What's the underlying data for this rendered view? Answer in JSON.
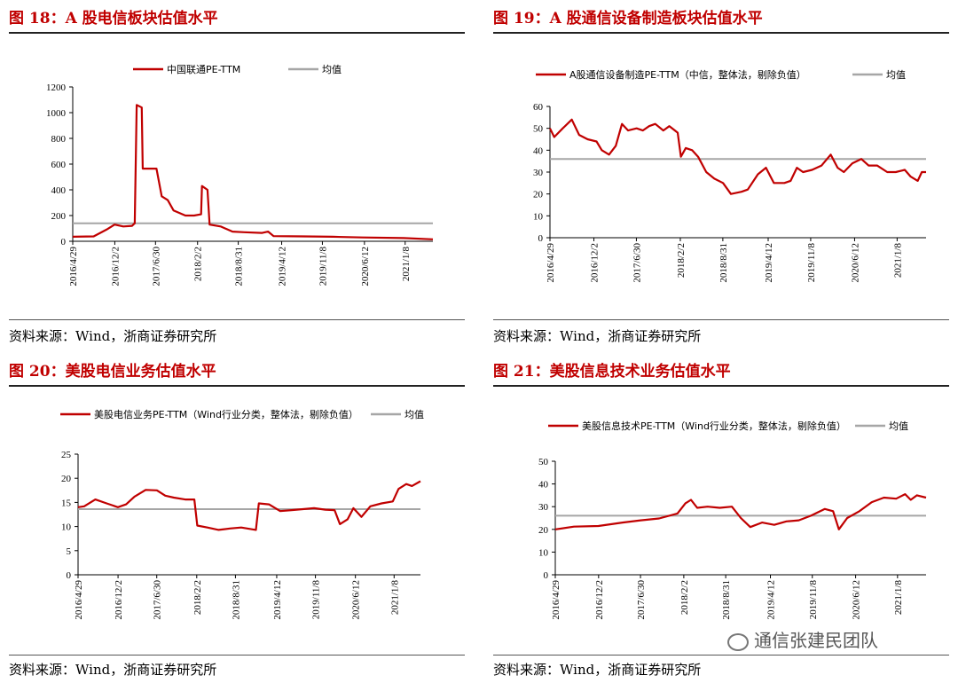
{
  "panels": [
    {
      "title": "图 18：A 股电信板块估值水平",
      "source": "资料来源：Wind，浙商证券研究所",
      "chart_data": {
        "type": "line",
        "series": [
          {
            "name": "中国联通PE-TTM",
            "color": "#c00000",
            "points": [
              [
                "2016-04-29",
                35
              ],
              [
                "2016-08-15",
                38
              ],
              [
                "2016-10-20",
                90
              ],
              [
                "2016-12-01",
                130
              ],
              [
                "2017-01-15",
                115
              ],
              [
                "2017-03-01",
                120
              ],
              [
                "2017-03-15",
                140
              ],
              [
                "2017-03-25",
                1060
              ],
              [
                "2017-04-20",
                1040
              ],
              [
                "2017-04-25",
                565
              ],
              [
                "2017-06-01",
                565
              ],
              [
                "2017-07-05",
                565
              ],
              [
                "2017-08-01",
                350
              ],
              [
                "2017-09-01",
                320
              ],
              [
                "2017-10-01",
                240
              ],
              [
                "2017-12-01",
                200
              ],
              [
                "2018-01-15",
                200
              ],
              [
                "2018-02-20",
                210
              ],
              [
                "2018-02-25",
                430
              ],
              [
                "2018-03-25",
                400
              ],
              [
                "2018-04-05",
                130
              ],
              [
                "2018-06-01",
                115
              ],
              [
                "2018-08-01",
                75
              ],
              [
                "2018-10-01",
                70
              ],
              [
                "2019-01-01",
                65
              ],
              [
                "2019-02-01",
                75
              ],
              [
                "2019-03-01",
                40
              ],
              [
                "2019-08-01",
                38
              ],
              [
                "2020-01-01",
                35
              ],
              [
                "2020-06-01",
                30
              ],
              [
                "2021-01-01",
                25
              ],
              [
                "2021-05-31",
                15
              ]
            ]
          },
          {
            "name": "均值",
            "color": "#a6a6a6",
            "points": [
              [
                "2016-04-29",
                140
              ],
              [
                "2021-05-31",
                140
              ]
            ]
          }
        ],
        "y_range": [
          0,
          1200
        ],
        "y_ticks": [
          "0",
          "200",
          "400",
          "600",
          "800",
          "1000",
          "1200"
        ],
        "x_ticks": [
          "2016/4/29",
          "2016/12/2",
          "2017/6/30",
          "2018/2/2",
          "2018/8/31",
          "2019/4/12",
          "2019/11/8",
          "2020/6/12",
          "2021/1/8"
        ],
        "x_range": [
          "2016-04-29",
          "2021-05-31"
        ],
        "legend": "top-center",
        "grid": false
      }
    },
    {
      "title": "图 19：A 股通信设备制造板块估值水平",
      "source": "资料来源：Wind，浙商证券研究所",
      "chart_data": {
        "type": "line",
        "series": [
          {
            "name": "A股通信设备制造PE-TTM（中信，整体法，剔除负值）",
            "color": "#c00000",
            "points": [
              [
                "2016-04-29",
                50
              ],
              [
                "2016-05-20",
                46
              ],
              [
                "2016-07-01",
                50
              ],
              [
                "2016-08-15",
                54
              ],
              [
                "2016-09-20",
                47
              ],
              [
                "2016-11-01",
                45
              ],
              [
                "2016-12-15",
                44
              ],
              [
                "2017-01-10",
                40
              ],
              [
                "2017-02-15",
                38
              ],
              [
                "2017-03-20",
                42
              ],
              [
                "2017-04-20",
                52
              ],
              [
                "2017-05-20",
                49
              ],
              [
                "2017-07-01",
                50
              ],
              [
                "2017-08-01",
                49
              ],
              [
                "2017-09-01",
                51
              ],
              [
                "2017-10-01",
                52
              ],
              [
                "2017-11-10",
                49
              ],
              [
                "2017-12-10",
                51
              ],
              [
                "2018-01-20",
                48
              ],
              [
                "2018-02-05",
                37
              ],
              [
                "2018-03-01",
                41
              ],
              [
                "2018-04-01",
                40
              ],
              [
                "2018-05-01",
                37
              ],
              [
                "2018-06-10",
                30
              ],
              [
                "2018-07-20",
                27
              ],
              [
                "2018-09-01",
                25
              ],
              [
                "2018-10-10",
                20
              ],
              [
                "2018-12-01",
                21
              ],
              [
                "2019-01-01",
                22
              ],
              [
                "2019-02-20",
                29
              ],
              [
                "2019-04-01",
                32
              ],
              [
                "2019-05-10",
                25
              ],
              [
                "2019-07-01",
                25
              ],
              [
                "2019-08-01",
                26
              ],
              [
                "2019-09-01",
                32
              ],
              [
                "2019-10-01",
                30
              ],
              [
                "2019-11-15",
                31
              ],
              [
                "2020-01-01",
                33
              ],
              [
                "2020-02-15",
                38
              ],
              [
                "2020-03-20",
                32
              ],
              [
                "2020-04-20",
                30
              ],
              [
                "2020-06-01",
                34
              ],
              [
                "2020-07-15",
                36
              ],
              [
                "2020-08-20",
                33
              ],
              [
                "2020-10-01",
                33
              ],
              [
                "2020-11-20",
                30
              ],
              [
                "2021-01-01",
                30
              ],
              [
                "2021-02-15",
                31
              ],
              [
                "2021-03-15",
                28
              ],
              [
                "2021-04-20",
                26
              ],
              [
                "2021-05-10",
                30
              ],
              [
                "2021-05-31",
                30
              ]
            ]
          },
          {
            "name": "均值",
            "color": "#a6a6a6",
            "points": [
              [
                "2016-04-29",
                36
              ],
              [
                "2021-05-31",
                36
              ]
            ]
          }
        ],
        "y_range": [
          0,
          60
        ],
        "y_ticks": [
          "0",
          "10",
          "20",
          "30",
          "40",
          "50",
          "60"
        ],
        "x_ticks": [
          "2016/4/29",
          "2016/12/2",
          "2017/6/30",
          "2018/2/2",
          "2018/8/31",
          "2019/4/12",
          "2019/11/8",
          "2020/6/12",
          "2021/1/8"
        ],
        "x_range": [
          "2016-04-29",
          "2021-05-31"
        ],
        "legend": "top-center",
        "grid": false
      }
    },
    {
      "title": "图 20：美股电信业务估值水平",
      "source": "资料来源：Wind，浙商证券研究所",
      "chart_data": {
        "type": "line",
        "series": [
          {
            "name": "美股电信业务PE-TTM（Wind行业分类，整体法，剔除负值）",
            "color": "#c00000",
            "points": [
              [
                "2016-04-29",
                14
              ],
              [
                "2016-06-01",
                14.2
              ],
              [
                "2016-08-01",
                15.6
              ],
              [
                "2016-10-01",
                14.8
              ],
              [
                "2016-12-01",
                14
              ],
              [
                "2017-01-15",
                14.6
              ],
              [
                "2017-03-01",
                16.2
              ],
              [
                "2017-05-01",
                17.6
              ],
              [
                "2017-07-01",
                17.5
              ],
              [
                "2017-08-15",
                16.4
              ],
              [
                "2017-10-01",
                16
              ],
              [
                "2017-12-01",
                15.6
              ],
              [
                "2018-01-20",
                15.6
              ],
              [
                "2018-02-05",
                10.2
              ],
              [
                "2018-04-01",
                9.8
              ],
              [
                "2018-06-01",
                9.3
              ],
              [
                "2018-08-01",
                9.6
              ],
              [
                "2018-10-01",
                9.8
              ],
              [
                "2018-12-20",
                9.3
              ],
              [
                "2019-01-05",
                14.8
              ],
              [
                "2019-03-01",
                14.6
              ],
              [
                "2019-05-01",
                13.2
              ],
              [
                "2019-07-01",
                13.4
              ],
              [
                "2019-09-01",
                13.6
              ],
              [
                "2019-11-01",
                13.8
              ],
              [
                "2020-01-01",
                13.5
              ],
              [
                "2020-02-20",
                13.4
              ],
              [
                "2020-03-20",
                10.5
              ],
              [
                "2020-05-01",
                11.5
              ],
              [
                "2020-06-01",
                13.8
              ],
              [
                "2020-07-15",
                12
              ],
              [
                "2020-09-01",
                14.2
              ],
              [
                "2020-11-01",
                14.8
              ],
              [
                "2021-01-01",
                15.2
              ],
              [
                "2021-02-01",
                17.8
              ],
              [
                "2021-03-15",
                18.8
              ],
              [
                "2021-04-15",
                18.4
              ],
              [
                "2021-05-31",
                19.4
              ]
            ]
          },
          {
            "name": "均值",
            "color": "#a6a6a6",
            "points": [
              [
                "2016-04-29",
                13.6
              ],
              [
                "2021-05-31",
                13.6
              ]
            ]
          }
        ],
        "y_range": [
          0,
          25
        ],
        "y_ticks": [
          "0",
          "5",
          "10",
          "15",
          "20",
          "25"
        ],
        "x_ticks": [
          "2016/4/29",
          "2016/12/2",
          "2017/6/30",
          "2018/2/2",
          "2018/8/31",
          "2019/4/12",
          "2019/11/8",
          "2020/6/12",
          "2021/1/8"
        ],
        "x_range": [
          "2016-04-29",
          "2021-05-31"
        ],
        "legend": "top-center",
        "grid": false
      }
    },
    {
      "title": "图 21：美股信息技术业务估值水平",
      "source": "资料来源：Wind，浙商证券研究所",
      "chart_data": {
        "type": "line",
        "series": [
          {
            "name": "美股信息技术PE-TTM（Wind行业分类，整体法，剔除负值）",
            "color": "#c00000",
            "points": [
              [
                "2016-04-29",
                20
              ],
              [
                "2016-08-01",
                21.2
              ],
              [
                "2016-12-01",
                21.5
              ],
              [
                "2017-04-01",
                23
              ],
              [
                "2017-07-01",
                24
              ],
              [
                "2017-10-01",
                24.8
              ],
              [
                "2018-01-01",
                27
              ],
              [
                "2018-02-10",
                31.5
              ],
              [
                "2018-03-10",
                33
              ],
              [
                "2018-04-10",
                29.5
              ],
              [
                "2018-06-01",
                30
              ],
              [
                "2018-08-01",
                29.5
              ],
              [
                "2018-10-01",
                30
              ],
              [
                "2018-11-15",
                25
              ],
              [
                "2019-01-01",
                21
              ],
              [
                "2019-03-01",
                23
              ],
              [
                "2019-05-01",
                22
              ],
              [
                "2019-07-01",
                23.5
              ],
              [
                "2019-09-01",
                24
              ],
              [
                "2019-11-01",
                26
              ],
              [
                "2020-01-10",
                29
              ],
              [
                "2020-02-20",
                28
              ],
              [
                "2020-03-20",
                20
              ],
              [
                "2020-05-01",
                25
              ],
              [
                "2020-07-01",
                28
              ],
              [
                "2020-09-01",
                32
              ],
              [
                "2020-11-01",
                34
              ],
              [
                "2021-01-01",
                33.5
              ],
              [
                "2021-02-15",
                35.5
              ],
              [
                "2021-03-15",
                33
              ],
              [
                "2021-04-15",
                35
              ],
              [
                "2021-05-31",
                34
              ]
            ]
          },
          {
            "name": "均值",
            "color": "#a6a6a6",
            "points": [
              [
                "2016-04-29",
                26
              ],
              [
                "2021-05-31",
                26
              ]
            ]
          }
        ],
        "y_range": [
          0,
          50
        ],
        "y_ticks": [
          "0",
          "10",
          "20",
          "30",
          "40",
          "50"
        ],
        "x_ticks": [
          "2016/4/29",
          "2016/12/2",
          "2017/6/30",
          "2018/2/2",
          "2018/8/31",
          "2019/4/12",
          "2019/11/8",
          "2020/6/12",
          "2021/1/8"
        ],
        "x_range": [
          "2016-04-29",
          "2021-05-31"
        ],
        "legend": "top-center",
        "grid": false
      }
    }
  ],
  "watermark": "通信张建民团队"
}
